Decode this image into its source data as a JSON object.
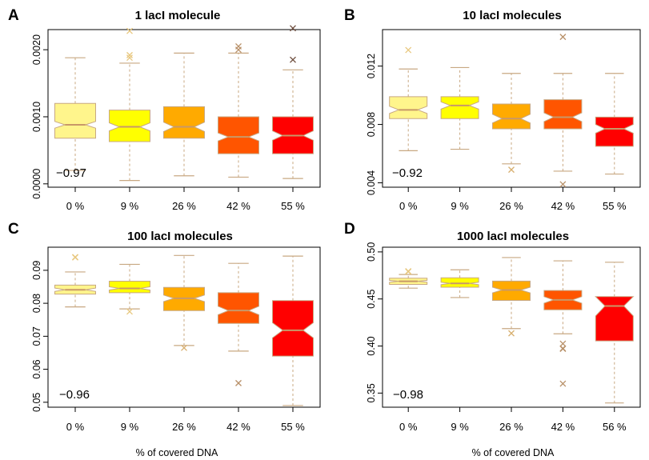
{
  "chart_data": [
    {
      "type": "boxplot",
      "panel_label": "A",
      "title": "1 lacI molecule",
      "xlabel": "",
      "ylabel": "",
      "annotation": "−0.97",
      "categories": [
        "0  %",
        "9  %",
        "26  %",
        "42  %",
        "55  %"
      ],
      "colors": [
        "#FFF58C",
        "#FFFF00",
        "#FFAA00",
        "#FF5500",
        "#FF0000"
      ],
      "outlier_colors": [
        "#E8C880",
        "#E8C880",
        "#D8B070",
        "#B89068",
        "#705040"
      ],
      "yticks": [
        "0.0000",
        "0.0010",
        "0.0020"
      ],
      "ytick_values": [
        0.0,
        0.001,
        0.002
      ],
      "ylim": [
        -5e-05,
        0.0023
      ],
      "boxes": [
        {
          "low": 0.0002,
          "q1": 0.00068,
          "median": 0.00088,
          "q3": 0.0012,
          "high": 0.00188,
          "notch_low": 0.00083,
          "notch_high": 0.00093,
          "outliers": []
        },
        {
          "low": 5e-05,
          "q1": 0.00063,
          "median": 0.00085,
          "q3": 0.0011,
          "high": 0.0018,
          "notch_low": 0.00079,
          "notch_high": 0.00091,
          "outliers": [
            0.00188,
            0.00192,
            0.00228
          ]
        },
        {
          "low": 0.00012,
          "q1": 0.00068,
          "median": 0.00085,
          "q3": 0.00115,
          "high": 0.00195,
          "notch_low": 0.00078,
          "notch_high": 0.00092,
          "outliers": []
        },
        {
          "low": 0.0001,
          "q1": 0.00045,
          "median": 0.0007,
          "q3": 0.001,
          "high": 0.00195,
          "notch_low": 0.00064,
          "notch_high": 0.00076,
          "outliers": [
            0.002,
            0.00205
          ]
        },
        {
          "low": 8e-05,
          "q1": 0.00045,
          "median": 0.00072,
          "q3": 0.001,
          "high": 0.0017,
          "notch_low": 0.00065,
          "notch_high": 0.00079,
          "outliers": [
            0.00185,
            0.00232
          ]
        }
      ]
    },
    {
      "type": "boxplot",
      "panel_label": "B",
      "title": "10 lacI molecules",
      "xlabel": "",
      "ylabel": "",
      "annotation": "−0.92",
      "categories": [
        "0  %",
        "9  %",
        "26  %",
        "42  %",
        "55  %"
      ],
      "colors": [
        "#FFF58C",
        "#FFFF00",
        "#FFAA00",
        "#FF5500",
        "#FF0000"
      ],
      "outlier_colors": [
        "#E8C880",
        "#E8C880",
        "#D8B070",
        "#B89068",
        "#705040"
      ],
      "yticks": [
        "0.004",
        "0.008",
        "0.012"
      ],
      "ytick_values": [
        0.004,
        0.008,
        0.012
      ],
      "ylim": [
        0.0037,
        0.0145
      ],
      "boxes": [
        {
          "low": 0.0062,
          "q1": 0.0084,
          "median": 0.009,
          "q3": 0.0099,
          "high": 0.0118,
          "notch_low": 0.00875,
          "notch_high": 0.00925,
          "outliers": [
            0.0131
          ]
        },
        {
          "low": 0.0063,
          "q1": 0.0084,
          "median": 0.0093,
          "q3": 0.0099,
          "high": 0.0119,
          "notch_low": 0.00905,
          "notch_high": 0.00955,
          "outliers": []
        },
        {
          "low": 0.0053,
          "q1": 0.0077,
          "median": 0.0084,
          "q3": 0.0094,
          "high": 0.0115,
          "notch_low": 0.0081,
          "notch_high": 0.0087,
          "outliers": [
            0.0049
          ]
        },
        {
          "low": 0.0048,
          "q1": 0.0077,
          "median": 0.0085,
          "q3": 0.0097,
          "high": 0.0115,
          "notch_low": 0.0082,
          "notch_high": 0.0088,
          "outliers": [
            0.0039,
            0.014
          ]
        },
        {
          "low": 0.0046,
          "q1": 0.0065,
          "median": 0.0077,
          "q3": 0.0085,
          "high": 0.0115,
          "notch_low": 0.0074,
          "notch_high": 0.008,
          "outliers": []
        }
      ]
    },
    {
      "type": "boxplot",
      "panel_label": "C",
      "title": "100 lacI molecules",
      "xlabel": "% of covered DNA",
      "ylabel": "",
      "annotation": "−0.96",
      "categories": [
        "0  %",
        "9  %",
        "26  %",
        "42  %",
        "55  %"
      ],
      "colors": [
        "#FFF58C",
        "#FFFF00",
        "#FFAA00",
        "#FF5500",
        "#FF0000"
      ],
      "outlier_colors": [
        "#E8C880",
        "#E8C880",
        "#D8B070",
        "#B89068",
        "#705040"
      ],
      "yticks": [
        "0.05",
        "0.06",
        "0.07",
        "0.08",
        "0.09"
      ],
      "ytick_values": [
        0.05,
        0.06,
        0.07,
        0.08,
        0.09
      ],
      "ylim": [
        0.0485,
        0.097
      ],
      "boxes": [
        {
          "low": 0.0789,
          "q1": 0.0828,
          "median": 0.0841,
          "q3": 0.0855,
          "high": 0.0895,
          "notch_low": 0.0836,
          "notch_high": 0.0846,
          "outliers": [
            0.0939,
            0.094
          ]
        },
        {
          "low": 0.0783,
          "q1": 0.0832,
          "median": 0.0845,
          "q3": 0.0867,
          "high": 0.0918,
          "notch_low": 0.084,
          "notch_high": 0.085,
          "outliers": [
            0.0775
          ]
        },
        {
          "low": 0.0672,
          "q1": 0.0778,
          "median": 0.0815,
          "q3": 0.0848,
          "high": 0.0945,
          "notch_low": 0.0805,
          "notch_high": 0.0825,
          "outliers": [
            0.0665
          ]
        },
        {
          "low": 0.0655,
          "q1": 0.0739,
          "median": 0.0778,
          "q3": 0.0832,
          "high": 0.0921,
          "notch_low": 0.0765,
          "notch_high": 0.0791,
          "outliers": [
            0.0558
          ]
        },
        {
          "low": 0.049,
          "q1": 0.064,
          "median": 0.0718,
          "q3": 0.0808,
          "high": 0.0943,
          "notch_low": 0.0695,
          "notch_high": 0.0741,
          "outliers": []
        }
      ]
    },
    {
      "type": "boxplot",
      "panel_label": "D",
      "title": "1000 lacI molecules",
      "xlabel": "% of covered DNA",
      "ylabel": "",
      "annotation": "−0.98",
      "categories": [
        "0  %",
        "9  %",
        "26  %",
        "42  %",
        "56  %"
      ],
      "colors": [
        "#FFF58C",
        "#FFFF00",
        "#FFAA00",
        "#FF5500",
        "#FF0000"
      ],
      "outlier_colors": [
        "#E8C880",
        "#E8C880",
        "#D8B070",
        "#B89068",
        "#705040"
      ],
      "yticks": [
        "0.35",
        "0.40",
        "0.45",
        "0.50"
      ],
      "ytick_values": [
        0.35,
        0.4,
        0.45,
        0.5
      ],
      "ylim": [
        0.335,
        0.505
      ],
      "boxes": [
        {
          "low": 0.4615,
          "q1": 0.4655,
          "median": 0.4688,
          "q3": 0.472,
          "high": 0.476,
          "notch_low": 0.4678,
          "notch_high": 0.4698,
          "outliers": [
            0.479,
            0.4795
          ]
        },
        {
          "low": 0.4515,
          "q1": 0.4625,
          "median": 0.4665,
          "q3": 0.4725,
          "high": 0.481,
          "notch_low": 0.4652,
          "notch_high": 0.4678,
          "outliers": []
        },
        {
          "low": 0.4185,
          "q1": 0.4485,
          "median": 0.4595,
          "q3": 0.469,
          "high": 0.494,
          "notch_low": 0.4565,
          "notch_high": 0.4625,
          "outliers": [
            0.4135
          ]
        },
        {
          "low": 0.413,
          "q1": 0.4385,
          "median": 0.449,
          "q3": 0.459,
          "high": 0.4905,
          "notch_low": 0.4455,
          "notch_high": 0.4525,
          "outliers": [
            0.4025,
            0.3975,
            0.397,
            0.36
          ]
        },
        {
          "low": 0.3395,
          "q1": 0.4055,
          "median": 0.4425,
          "q3": 0.4525,
          "high": 0.489,
          "notch_low": 0.432,
          "notch_high": 0.4525,
          "outliers": []
        }
      ]
    }
  ]
}
